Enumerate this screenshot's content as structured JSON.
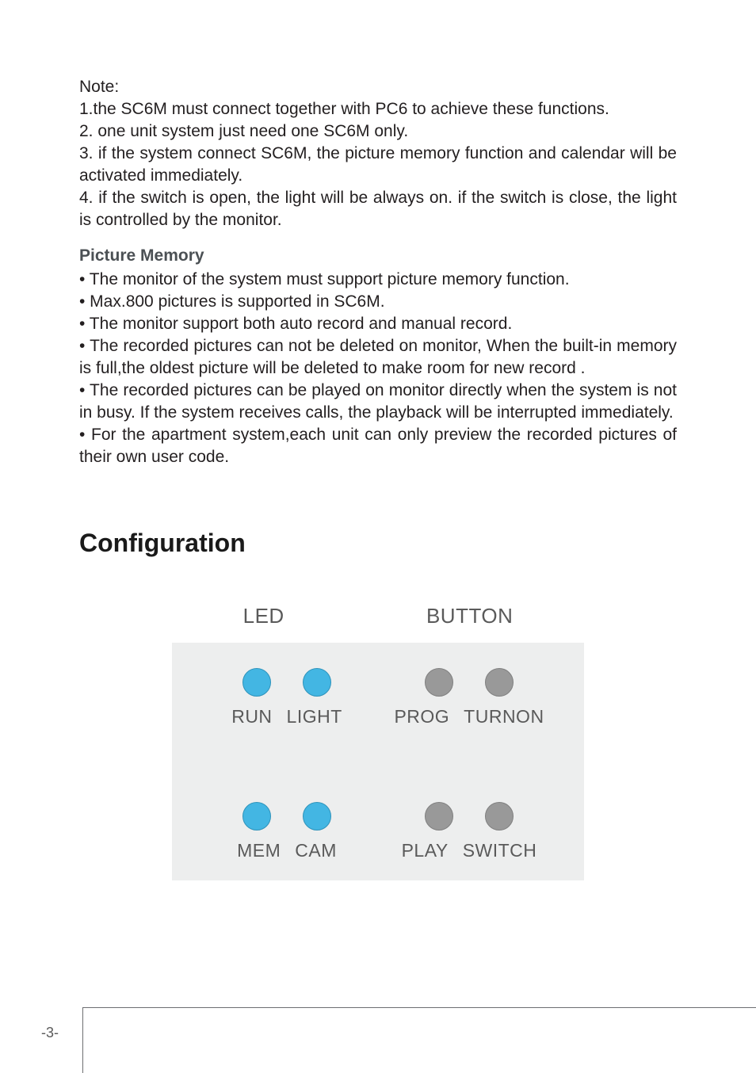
{
  "note": {
    "heading": "Note:",
    "items": [
      "1.the SC6M must connect together with PC6 to achieve these functions.",
      "2. one unit system just need one SC6M only.",
      "3. if the system connect SC6M, the picture memory function and calendar will be activated immediately.",
      "4. if the switch is open, the light will be always on. if the switch is close, the light is controlled by the monitor."
    ]
  },
  "picture_memory": {
    "title": "Picture Memory",
    "bullets": [
      "• The monitor of the system must support picture memory function.",
      "• Max.800 pictures is supported in SC6M.",
      "• The monitor support both auto record and manual record.",
      "• The recorded pictures can not be deleted on monitor, When the built-in memory is full,the oldest picture will be deleted to make room for new record .",
      "• The recorded pictures can be played on monitor directly when the system is not in busy. If the system receives calls, the playback will be interrupted immediately.",
      "• For the apartment system,each unit can only preview the recorded pictures of their own user code."
    ]
  },
  "config": {
    "heading": "Configuration",
    "header_labels": {
      "left": "LED",
      "right": "BUTTON"
    },
    "panel_bg": "#edeeee",
    "led_color": "#43b6e3",
    "led_stroke": "#2e93bb",
    "button_color": "#999999",
    "button_stroke": "#808080",
    "dot_size": 36,
    "rows": {
      "led_top": {
        "labels": [
          "RUN",
          "LIGHT"
        ]
      },
      "led_bottom": {
        "labels": [
          "MEM",
          "CAM"
        ]
      },
      "btn_top": {
        "labels": [
          "PROG",
          "TURNON"
        ]
      },
      "btn_bottom": {
        "labels": [
          "PLAY",
          "SWITCH"
        ]
      }
    }
  },
  "page_number": "-3-"
}
